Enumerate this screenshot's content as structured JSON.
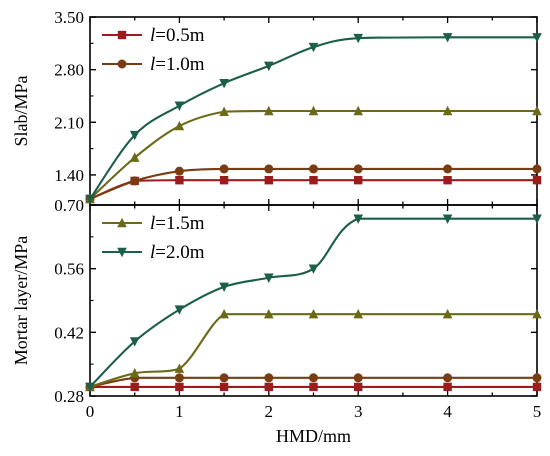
{
  "chart_data": [
    {
      "type": "line",
      "ylabel": "Slab/MPa",
      "xlabel": "",
      "xlim": [
        0,
        5
      ],
      "ylim": [
        1.0,
        3.5
      ],
      "yticks": [
        "3.50",
        "2.80",
        "2.10",
        "1.40"
      ],
      "xticks": [],
      "grid": false,
      "legend": {
        "placement": "top-left",
        "entries": [
          {
            "var": "l",
            "value": "=0.5m"
          },
          {
            "var": "l",
            "value": "=1.0m"
          }
        ]
      },
      "series": [
        {
          "name": "l=0.5m",
          "marker": "square",
          "color": "#9b1c1c",
          "x": [
            0,
            0.5,
            1,
            1.5,
            2,
            2.5,
            3,
            4,
            5
          ],
          "y": [
            1.08,
            1.32,
            1.33,
            1.33,
            1.33,
            1.33,
            1.33,
            1.33,
            1.33
          ]
        },
        {
          "name": "l=1.0m",
          "marker": "circle",
          "color": "#7a3c12",
          "x": [
            0,
            0.5,
            1,
            1.5,
            2,
            2.5,
            3,
            4,
            5
          ],
          "y": [
            1.08,
            1.32,
            1.45,
            1.48,
            1.48,
            1.48,
            1.48,
            1.48,
            1.48
          ]
        },
        {
          "name": "l=1.5m",
          "marker": "triangle-up",
          "color": "#6b6a18",
          "x": [
            0,
            0.5,
            1,
            1.5,
            2,
            2.5,
            3,
            4,
            5
          ],
          "y": [
            1.08,
            1.63,
            2.05,
            2.24,
            2.25,
            2.25,
            2.25,
            2.25,
            2.25
          ]
        },
        {
          "name": "l=2.0m",
          "marker": "triangle-down",
          "color": "#1b5e4a",
          "x": [
            0,
            0.5,
            1,
            1.5,
            2,
            2.5,
            3,
            4,
            5
          ],
          "y": [
            1.08,
            1.93,
            2.32,
            2.62,
            2.85,
            3.1,
            3.22,
            3.23,
            3.23
          ]
        }
      ]
    },
    {
      "type": "line",
      "ylabel": "Mortar layer/MPa",
      "xlabel": "HMD/mm",
      "xlim": [
        0,
        5
      ],
      "ylim": [
        0.28,
        0.7
      ],
      "yticks": [
        "0.70",
        "0.56",
        "0.42",
        "0.28"
      ],
      "xticks": [
        "0",
        "1",
        "2",
        "3",
        "4",
        "5"
      ],
      "grid": false,
      "legend": {
        "placement": "top-left",
        "entries": [
          {
            "var": "l",
            "value": "=1.5m"
          },
          {
            "var": "l",
            "value": "=2.0m"
          }
        ]
      },
      "series": [
        {
          "name": "l=0.5m",
          "marker": "square",
          "color": "#9b1c1c",
          "x": [
            0,
            0.5,
            1,
            1.5,
            2,
            2.5,
            3,
            4,
            5
          ],
          "y": [
            0.3,
            0.3,
            0.3,
            0.3,
            0.3,
            0.3,
            0.3,
            0.3,
            0.3
          ]
        },
        {
          "name": "l=1.0m",
          "marker": "circle",
          "color": "#7a3c12",
          "x": [
            0,
            0.5,
            1,
            1.5,
            2,
            2.5,
            3,
            4,
            5
          ],
          "y": [
            0.3,
            0.32,
            0.32,
            0.32,
            0.32,
            0.32,
            0.32,
            0.32,
            0.32
          ]
        },
        {
          "name": "l=1.5m",
          "marker": "triangle-up",
          "color": "#6b6a18",
          "x": [
            0,
            0.5,
            1,
            1.5,
            2,
            2.5,
            3,
            4,
            5
          ],
          "y": [
            0.3,
            0.33,
            0.34,
            0.46,
            0.46,
            0.46,
            0.46,
            0.46,
            0.46
          ]
        },
        {
          "name": "l=2.0m",
          "marker": "triangle-down",
          "color": "#1b5e4a",
          "x": [
            0,
            0.5,
            1,
            1.5,
            2,
            2.5,
            3,
            4,
            5
          ],
          "y": [
            0.3,
            0.4,
            0.47,
            0.52,
            0.54,
            0.56,
            0.67,
            0.67,
            0.67
          ]
        }
      ]
    }
  ]
}
